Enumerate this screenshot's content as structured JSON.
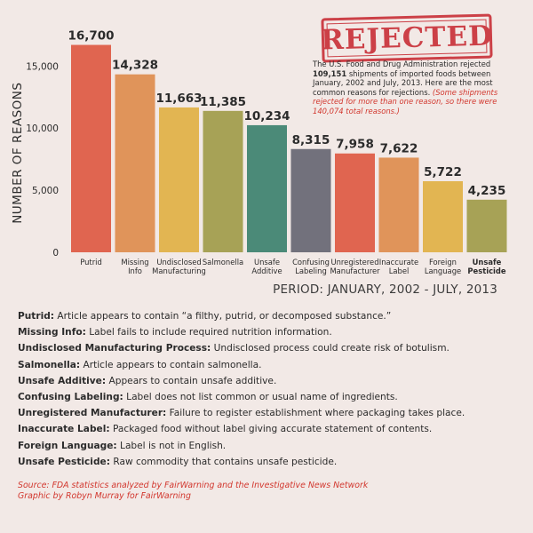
{
  "chart_data": {
    "type": "bar",
    "categories": [
      [
        "Putrid"
      ],
      [
        "Missing",
        "Info"
      ],
      [
        "Undisclosed",
        "Manufacturing"
      ],
      [
        "Salmonella"
      ],
      [
        "Unsafe",
        "Additive"
      ],
      [
        "Confusing",
        "Labeling"
      ],
      [
        "Unregistered",
        "Manufacturer"
      ],
      [
        "Inaccurate",
        "Label"
      ],
      [
        "Foreign",
        "Language"
      ],
      [
        "Unsafe",
        "Pesticide"
      ]
    ],
    "values": [
      16700,
      14328,
      11663,
      11385,
      10234,
      8315,
      7958,
      7622,
      5722,
      4235
    ],
    "value_labels": [
      "16,700",
      "14,328",
      "11,663",
      "11,385",
      "10,234",
      "8,315",
      "7,958",
      "7,622",
      "5,722",
      "4,235"
    ],
    "colors": [
      "#e06550",
      "#e0945a",
      "#e2b552",
      "#a7a256",
      "#4b8a78",
      "#72717c",
      "#e06550",
      "#e0945a",
      "#e2b552",
      "#a7a256"
    ],
    "bold_category_index": 9,
    "yticks": [
      0,
      5000,
      10000,
      15000
    ],
    "ytick_labels": [
      "0",
      "5,000",
      "10,000",
      "15,000"
    ],
    "ylim": [
      0,
      17500
    ],
    "ylabel": "NUMBER OF REASONS",
    "xlabel": "",
    "title": ""
  },
  "stamp": {
    "text": "REJECTED"
  },
  "intro": {
    "text_a": "The U.S. Food and Drug Administration rejected ",
    "highlight": "109,151",
    "text_b": " shipments of imported foods between January, 2002 and July, 2013. Here are the most common reasons for rejections. ",
    "note": "(Some shipments rejected for more than one reason, so there were 140,074 total reasons.)"
  },
  "period": "PERIOD: JANUARY, 2002 - JULY, 2013",
  "definitions": [
    {
      "term": "Putrid:",
      "desc": " Article appears to contain “a filthy, putrid, or decomposed substance.”"
    },
    {
      "term": "Missing Info:",
      "desc": " Label fails to include required nutrition information."
    },
    {
      "term": "Undisclosed Manufacturing Process:",
      "desc": " Undisclosed process could create risk of  botulism."
    },
    {
      "term": "Salmonella:",
      "desc": " Article appears to contain salmonella."
    },
    {
      "term": "Unsafe Additive:",
      "desc": " Appears to contain unsafe additive."
    },
    {
      "term": "Confusing Labeling:",
      "desc": " Label does not list common or usual name of ingredients."
    },
    {
      "term": "Unregistered Manufacturer:",
      "desc": " Failure to register establishment where packaging takes place."
    },
    {
      "term": "Inaccurate Label:",
      "desc": " Packaged food without label giving accurate statement of contents."
    },
    {
      "term": "Foreign Language:",
      "desc": " Label is not in English."
    },
    {
      "term": "Unsafe Pesticide:",
      "desc": " Raw commodity that contains unsafe pesticide."
    }
  ],
  "source": {
    "line1": "Source: FDA statistics analyzed by FairWarning and the Investigative News Network",
    "line2": "Graphic by Robyn Murray for FairWarning"
  }
}
